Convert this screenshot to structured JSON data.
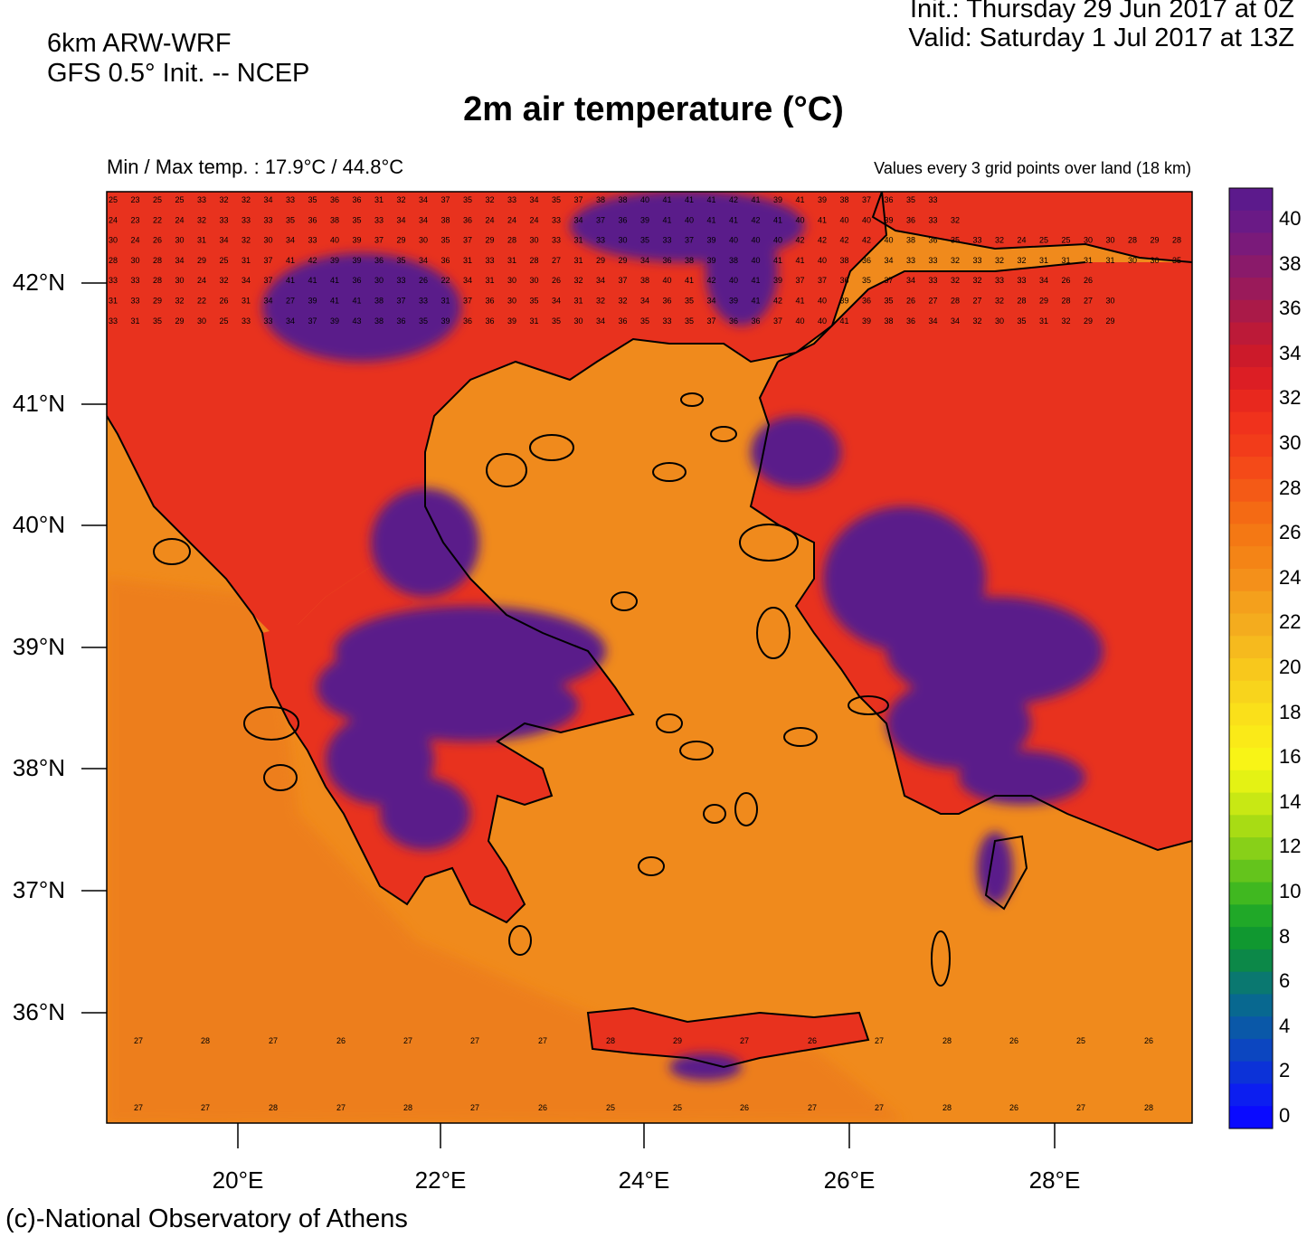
{
  "header": {
    "model_line1": "6km ARW-WRF",
    "model_line2": "GFS 0.5° Init. -- NCEP",
    "init_line": "Init.:  Thursday 29 Jun 2017 at 0Z",
    "valid_line": "Valid: Saturday 1 Jul 2017 at 13Z",
    "title": "2m air temperature (°C)",
    "minmax": "Min / Max temp. : 17.9°C / 44.8°C",
    "values_note": "Values every 3 grid points over land (18 km)"
  },
  "footer": {
    "credit": "(c)-National Observatory of Athens"
  },
  "map": {
    "lat_labels": [
      "42°N",
      "41°N",
      "40°N",
      "39°N",
      "38°N",
      "37°N",
      "36°N"
    ],
    "lon_labels": [
      "20°E",
      "22°E",
      "24°E",
      "26°E",
      "28°E"
    ],
    "sea_color": "#f08a1c",
    "coast_color": "#000000",
    "land_hot_color": "#5a1f8a",
    "land_warm_color": "#e8321e"
  },
  "colorbar": {
    "labels": [
      "40",
      "38",
      "36",
      "34",
      "32",
      "30",
      "28",
      "26",
      "24",
      "22",
      "20",
      "18",
      "16",
      "14",
      "12",
      "10",
      "8",
      "6",
      "4",
      "2",
      "0"
    ],
    "colors": [
      "#5c1a8c",
      "#6a1a86",
      "#7a1a7a",
      "#8a1a6a",
      "#9a1a5a",
      "#aa1a48",
      "#bc1a38",
      "#cc1a2a",
      "#dc1e24",
      "#e8281e",
      "#f0321c",
      "#f23c1a",
      "#f44a18",
      "#f45a16",
      "#f46a14",
      "#f47814",
      "#f48416",
      "#f4901a",
      "#f4a01c",
      "#f4ac1e",
      "#f6ba1e",
      "#f8c81c",
      "#f8d41c",
      "#fae01a",
      "#faea18",
      "#f8f416",
      "#e4f214",
      "#c8e814",
      "#a8dc14",
      "#88d018",
      "#64c41c",
      "#40b820",
      "#20a828",
      "#109830",
      "#0c8848",
      "#0a7870",
      "#086890",
      "#0a58a8",
      "#0c46c0",
      "#0c32d8",
      "#0c1ef0",
      "#0a0aff"
    ]
  },
  "grid_values": [
    [
      "25",
      "23",
      "25",
      "25",
      "33",
      "32",
      "32",
      "34",
      "33",
      "35",
      "36",
      "36",
      "31",
      "32",
      "34",
      "37",
      "35",
      "32",
      "33",
      "34",
      "35",
      "37",
      "38",
      "38",
      "40",
      "41",
      "41",
      "41",
      "42",
      "41",
      "39",
      "41",
      "39",
      "38",
      "37",
      "36",
      "35",
      "33"
    ],
    [
      "24",
      "23",
      "22",
      "24",
      "32",
      "33",
      "33",
      "33",
      "35",
      "36",
      "38",
      "35",
      "33",
      "34",
      "34",
      "38",
      "36",
      "24",
      "24",
      "24",
      "33",
      "34",
      "37",
      "36",
      "39",
      "41",
      "40",
      "41",
      "41",
      "42",
      "41",
      "40",
      "41",
      "40",
      "40",
      "39",
      "36",
      "33",
      "32"
    ],
    [
      "30",
      "24",
      "26",
      "30",
      "31",
      "34",
      "32",
      "30",
      "34",
      "33",
      "40",
      "39",
      "37",
      "29",
      "30",
      "35",
      "37",
      "29",
      "28",
      "30",
      "33",
      "31",
      "33",
      "30",
      "35",
      "33",
      "37",
      "39",
      "40",
      "40",
      "40",
      "42",
      "42",
      "42",
      "42",
      "40",
      "38",
      "36",
      "35",
      "33",
      "32",
      "24",
      "25",
      "25",
      "30",
      "30",
      "28",
      "29",
      "28"
    ],
    [
      "28",
      "30",
      "28",
      "34",
      "29",
      "25",
      "31",
      "37",
      "41",
      "42",
      "39",
      "39",
      "36",
      "35",
      "34",
      "36",
      "31",
      "33",
      "31",
      "28",
      "27",
      "31",
      "29",
      "29",
      "34",
      "36",
      "38",
      "39",
      "38",
      "40",
      "41",
      "41",
      "40",
      "38",
      "36",
      "34",
      "33",
      "33",
      "32",
      "33",
      "32",
      "32",
      "31",
      "31",
      "31",
      "31",
      "30",
      "30",
      "35"
    ],
    [
      "33",
      "33",
      "28",
      "30",
      "24",
      "32",
      "34",
      "37",
      "41",
      "41",
      "41",
      "36",
      "30",
      "33",
      "26",
      "22",
      "34",
      "31",
      "30",
      "30",
      "26",
      "32",
      "34",
      "37",
      "38",
      "40",
      "41",
      "42",
      "40",
      "41",
      "39",
      "37",
      "37",
      "36",
      "35",
      "37",
      "34",
      "33",
      "32",
      "32",
      "33",
      "33",
      "34",
      "26",
      "26"
    ],
    [
      "31",
      "33",
      "29",
      "32",
      "22",
      "26",
      "31",
      "34",
      "27",
      "39",
      "41",
      "41",
      "38",
      "37",
      "33",
      "31",
      "37",
      "36",
      "30",
      "35",
      "34",
      "31",
      "32",
      "32",
      "34",
      "36",
      "35",
      "34",
      "39",
      "41",
      "42",
      "41",
      "40",
      "39",
      "36",
      "35",
      "26",
      "27",
      "28",
      "27",
      "32",
      "28",
      "29",
      "28",
      "27",
      "30"
    ],
    [
      "33",
      "31",
      "35",
      "29",
      "30",
      "25",
      "33",
      "33",
      "34",
      "37",
      "39",
      "43",
      "38",
      "36",
      "35",
      "39",
      "36",
      "36",
      "39",
      "31",
      "35",
      "30",
      "34",
      "36",
      "35",
      "33",
      "35",
      "37",
      "36",
      "36",
      "37",
      "40",
      "40",
      "41",
      "39",
      "38",
      "36",
      "34",
      "34",
      "32",
      "30",
      "35",
      "31",
      "32",
      "29",
      "29"
    ]
  ],
  "sea_values": [
    "27",
    "28",
    "27",
    "26",
    "27",
    "27",
    "27",
    "28",
    "29",
    "27",
    "26",
    "27",
    "28",
    "26",
    "25",
    "26",
    "27",
    "27",
    "28",
    "27",
    "28",
    "27",
    "26",
    "25",
    "25",
    "26",
    "27",
    "27",
    "28",
    "26"
  ]
}
